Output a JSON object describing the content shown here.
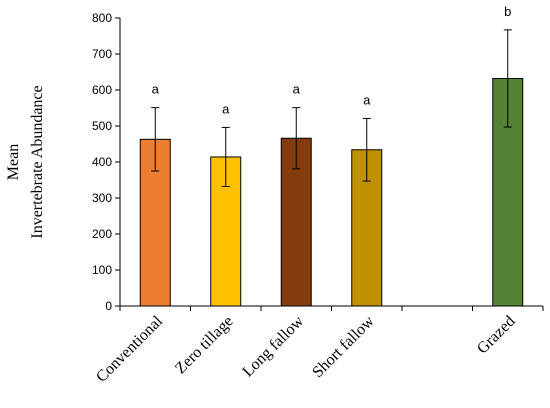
{
  "chart_data": {
    "type": "bar",
    "title": "",
    "xlabel": "",
    "ylabel_lines": [
      "Mean",
      "Invertebrate  Abundance"
    ],
    "ylim": [
      0,
      800
    ],
    "yticks": [
      0,
      100,
      200,
      300,
      400,
      500,
      600,
      700,
      800
    ],
    "grid": false,
    "categories": [
      "Conventional",
      "Zero tillage",
      "Long fallow",
      "Short fallow",
      "",
      "Grazed"
    ],
    "values": [
      463,
      414,
      466,
      434,
      null,
      632
    ],
    "error": [
      88,
      82,
      85,
      87,
      null,
      135
    ],
    "significance": [
      "a",
      "a",
      "a",
      "a",
      "",
      "b"
    ],
    "colors": [
      "#ED7D31",
      "#FFC000",
      "#843C0C",
      "#BF9000",
      null,
      "#548235"
    ]
  }
}
